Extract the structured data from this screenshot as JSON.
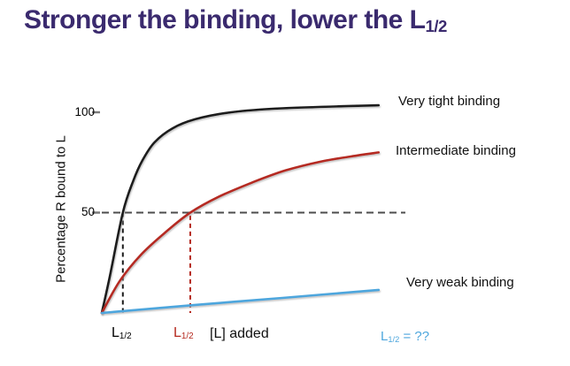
{
  "slide": {
    "title_main": "Stronger the binding, lower the L",
    "title_sub": "1/2",
    "title_color": "#3a2a6e",
    "background": "#ffffff"
  },
  "axis": {
    "y_label": "Percentage R bound to L",
    "tick_top": "100",
    "tick_mid": "50",
    "x_label": "[L] added"
  },
  "labels": {
    "tight": "Very tight binding",
    "intermediate": "Intermediate binding",
    "weak": "Very weak binding"
  },
  "annotations": {
    "lhalf_base": "L",
    "lhalf_sub": "1/2",
    "weak_equals": " = ??"
  },
  "chart_data": {
    "type": "line",
    "title": "Stronger the binding, lower the L1/2",
    "xlabel": "[L] added",
    "ylabel": "Percentage R bound to L",
    "xlim": [
      0,
      1
    ],
    "ylim": [
      0,
      105
    ],
    "yticks": [
      50,
      100
    ],
    "grid": false,
    "legend_position": "labels-at-curve-ends-right",
    "axis_color": "#7a7a7a",
    "dash_color": "#4d4d4d",
    "series": [
      {
        "name": "Very tight binding",
        "color": "#1a1a1a",
        "half_max_x": 0.07,
        "points": [
          [
            0,
            0
          ],
          [
            0.025,
            17
          ],
          [
            0.07,
            50
          ],
          [
            0.105,
            66
          ],
          [
            0.135,
            76
          ],
          [
            0.175,
            85
          ],
          [
            0.235,
            92
          ],
          [
            0.31,
            96.5
          ],
          [
            0.43,
            100
          ],
          [
            0.6,
            102
          ],
          [
            0.92,
            103.5
          ]
        ]
      },
      {
        "name": "Intermediate binding",
        "color": "#b52a20",
        "half_max_x": 0.294,
        "points": [
          [
            0,
            0
          ],
          [
            0.06,
            16
          ],
          [
            0.13,
            29
          ],
          [
            0.21,
            40
          ],
          [
            0.294,
            50
          ],
          [
            0.39,
            58
          ],
          [
            0.5,
            65
          ],
          [
            0.61,
            71
          ],
          [
            0.73,
            75.5
          ],
          [
            0.85,
            78.5
          ],
          [
            0.92,
            80
          ]
        ]
      },
      {
        "name": "Very weak binding",
        "color": "#4da6dd",
        "half_max_x": null,
        "points": [
          [
            0,
            0
          ],
          [
            0.31,
            4
          ],
          [
            0.6,
            7.5
          ],
          [
            0.92,
            11.5
          ]
        ]
      }
    ],
    "reference_lines": {
      "horizontal_y": 50,
      "vertical": [
        {
          "x": 0.07,
          "y_top": 50,
          "color": "#1a1a1a",
          "series": "Very tight binding"
        },
        {
          "x": 0.294,
          "y_top": 48.5,
          "color": "#b52a20",
          "series": "Intermediate binding"
        }
      ]
    }
  }
}
